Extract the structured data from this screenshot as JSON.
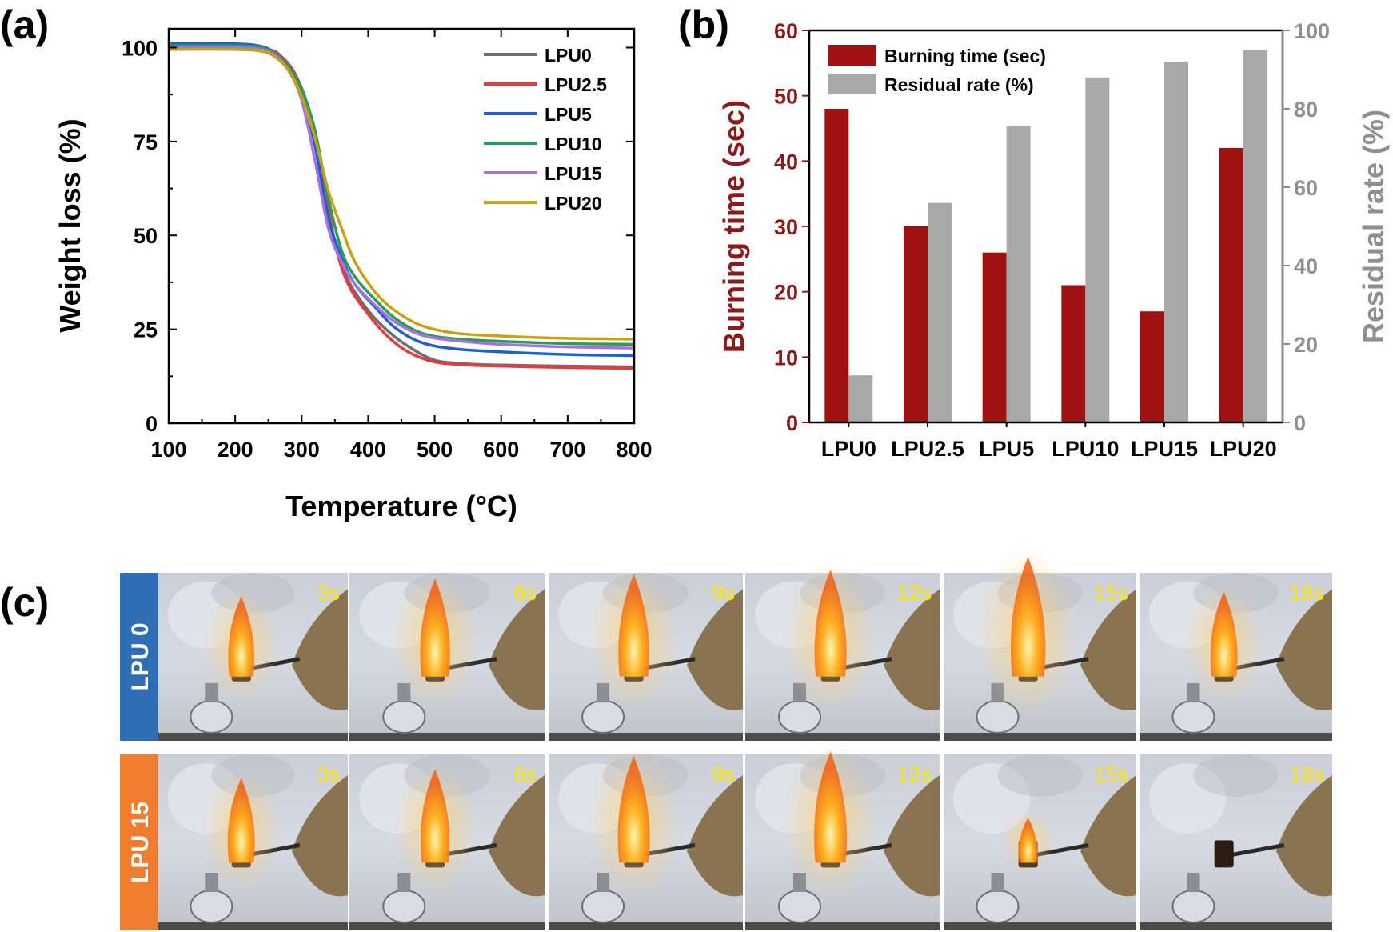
{
  "panels": {
    "a": {
      "letter": "(a)"
    },
    "b": {
      "letter": "(b)"
    },
    "c": {
      "letter": "(c)"
    }
  },
  "chart_data": [
    {
      "type": "line",
      "xlabel": "Temperature (°C)",
      "ylabel": "Weight loss (%)",
      "xlim": [
        100,
        800
      ],
      "ylim": [
        0,
        105
      ],
      "xticks": [
        100,
        200,
        300,
        400,
        500,
        600,
        700,
        800
      ],
      "yticks": [
        0,
        25,
        50,
        75,
        100
      ],
      "grid": false,
      "legend_position": "top-right",
      "series": [
        {
          "name": "LPU0",
          "color": "#6e6e6e",
          "x": [
            100,
            200,
            250,
            270,
            290,
            310,
            330,
            350,
            370,
            400,
            430,
            460,
            500,
            550,
            600,
            700,
            800
          ],
          "y": [
            100,
            100,
            99.5,
            97.5,
            93,
            84,
            68,
            48,
            38,
            30,
            24.5,
            20.5,
            16.8,
            15.8,
            15.5,
            15.2,
            15
          ]
        },
        {
          "name": "LPU2.5",
          "color": "#e8393d",
          "x": [
            100,
            200,
            250,
            270,
            290,
            310,
            330,
            350,
            370,
            400,
            430,
            460,
            500,
            550,
            600,
            700,
            800
          ],
          "y": [
            100,
            100,
            99.5,
            97.5,
            93,
            84,
            68,
            48,
            37,
            29,
            23,
            19,
            16.3,
            15.5,
            15.2,
            14.8,
            14.6
          ]
        },
        {
          "name": "LPU5",
          "color": "#1f5fd1",
          "x": [
            100,
            200,
            240,
            260,
            280,
            300,
            320,
            340,
            360,
            380,
            410,
            440,
            480,
            530,
            600,
            700,
            800
          ],
          "y": [
            101,
            101,
            100.3,
            98.5,
            95,
            88,
            74,
            55,
            44,
            37,
            31,
            25.5,
            21.5,
            19.8,
            19,
            18.3,
            18
          ]
        },
        {
          "name": "LPU10",
          "color": "#2b9c57",
          "x": [
            100,
            200,
            240,
            260,
            280,
            300,
            320,
            340,
            360,
            380,
            410,
            440,
            480,
            530,
            600,
            700,
            800
          ],
          "y": [
            100.5,
            100.5,
            100,
            98.5,
            95,
            89,
            78,
            60,
            46,
            39,
            33,
            28,
            24,
            22.5,
            21.8,
            21.2,
            21
          ]
        },
        {
          "name": "LPU15",
          "color": "#a572e0",
          "x": [
            100,
            200,
            240,
            260,
            280,
            300,
            320,
            340,
            360,
            380,
            410,
            440,
            480,
            530,
            600,
            700,
            800
          ],
          "y": [
            100,
            100,
            99.5,
            98,
            94,
            86,
            70,
            52,
            43,
            37,
            31.5,
            27,
            23.5,
            22,
            21,
            20.3,
            20
          ]
        },
        {
          "name": "LPU20",
          "color": "#c9a116",
          "x": [
            100,
            200,
            240,
            260,
            280,
            300,
            320,
            340,
            360,
            380,
            410,
            440,
            480,
            530,
            600,
            700,
            800
          ],
          "y": [
            99.5,
            99.5,
            99,
            97.5,
            94,
            87,
            76,
            62,
            52,
            43,
            35,
            30,
            26,
            24,
            23.2,
            22.6,
            22.4
          ]
        }
      ]
    },
    {
      "type": "bar",
      "categories": [
        "LPU0",
        "LPU2.5",
        "LPU5",
        "LPU10",
        "LPU15",
        "LPU20"
      ],
      "ylabel_left": "Burning time (sec)",
      "ylabel_right": "Residual rate (%)",
      "ylim_left": [
        0,
        60
      ],
      "ylim_right": [
        0,
        100
      ],
      "yticks_left": [
        0,
        10,
        20,
        30,
        40,
        50,
        60
      ],
      "yticks_right": [
        0,
        20,
        40,
        60,
        80,
        100
      ],
      "legend_position": "top-left",
      "series": [
        {
          "name": "Burning time (sec)",
          "axis": "left",
          "color": "#a01212",
          "values": [
            48,
            30,
            26,
            21,
            17,
            42
          ]
        },
        {
          "name": "Residual rate (%)",
          "axis": "right",
          "color": "#a8a8a8",
          "values": [
            12,
            56,
            75.5,
            88,
            92,
            95
          ]
        }
      ]
    }
  ],
  "photos": {
    "rows": [
      {
        "label": "LPU 0",
        "color": "#2e6eb5",
        "times": [
          "3s",
          "6s",
          "9s",
          "12s",
          "15s",
          "18s"
        ],
        "flame": [
          0.55,
          0.75,
          0.8,
          0.85,
          1.0,
          0.6
        ]
      },
      {
        "label": "LPU 15",
        "color": "#ee7d31",
        "times": [
          "3s",
          "6s",
          "9s",
          "12s",
          "15s",
          "18s"
        ],
        "flame": [
          0.6,
          0.7,
          0.85,
          0.9,
          0.15,
          0.0
        ]
      }
    ]
  }
}
